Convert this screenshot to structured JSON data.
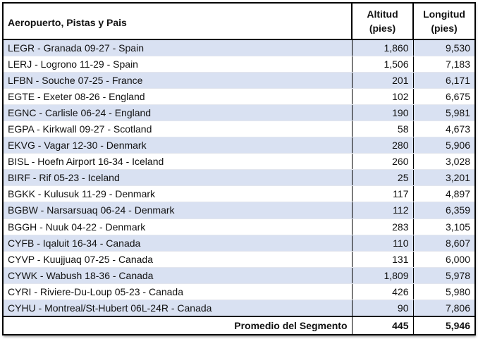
{
  "headers": {
    "name": "Aeropuerto, Pistas y Pais",
    "altitude_line1": "Altitud",
    "altitude_line2": "(pies)",
    "length_line1": "Longitud",
    "length_line2": "(pies)"
  },
  "rows": [
    {
      "name": "LEGR - Granada 09-27 - Spain",
      "altitude": "1,860",
      "length": "9,530"
    },
    {
      "name": "LERJ - Logrono 11-29 - Spain",
      "altitude": "1,506",
      "length": "7,183"
    },
    {
      "name": "LFBN - Souche 07-25 - France",
      "altitude": "201",
      "length": "6,171"
    },
    {
      "name": "EGTE - Exeter 08-26 - England",
      "altitude": "102",
      "length": "6,675"
    },
    {
      "name": "EGNC - Carlisle 06-24 - England",
      "altitude": "190",
      "length": "5,981"
    },
    {
      "name": "EGPA - Kirkwall 09-27 - Scotland",
      "altitude": "58",
      "length": "4,673"
    },
    {
      "name": "EKVG - Vagar 12-30 - Denmark",
      "altitude": "280",
      "length": "5,906"
    },
    {
      "name": "BISL - Hoefn Airport 16-34 - Iceland",
      "altitude": "260",
      "length": "3,028"
    },
    {
      "name": "BIRF - Rif 05-23 - Iceland",
      "altitude": "25",
      "length": "3,201"
    },
    {
      "name": "BGKK - Kulusuk 11-29 - Denmark",
      "altitude": "117",
      "length": "4,897"
    },
    {
      "name": "BGBW - Narsarsuaq 06-24 - Denmark",
      "altitude": "112",
      "length": "6,359"
    },
    {
      "name": "BGGH - Nuuk 04-22 - Denmark",
      "altitude": "283",
      "length": "3,105"
    },
    {
      "name": "CYFB - Iqaluit 16-34 - Canada",
      "altitude": "110",
      "length": "8,607"
    },
    {
      "name": "CYVP - Kuujjuaq 07-25 - Canada",
      "altitude": "131",
      "length": "6,000"
    },
    {
      "name": "CYWK - Wabush 18-36 - Canada",
      "altitude": "1,809",
      "length": "5,978"
    },
    {
      "name": "CYRI - Riviere-Du-Loup 05-23 - Canada",
      "altitude": "426",
      "length": "5,980"
    },
    {
      "name": "CYHU - Montreal/St-Hubert 06L-24R - Canada",
      "altitude": "90",
      "length": "7,806"
    }
  ],
  "footer": {
    "label": "Promedio del Segmento",
    "altitude": "445",
    "length": "5,946"
  },
  "colors": {
    "row_shade": "#d9e1f2",
    "border": "#000000"
  }
}
